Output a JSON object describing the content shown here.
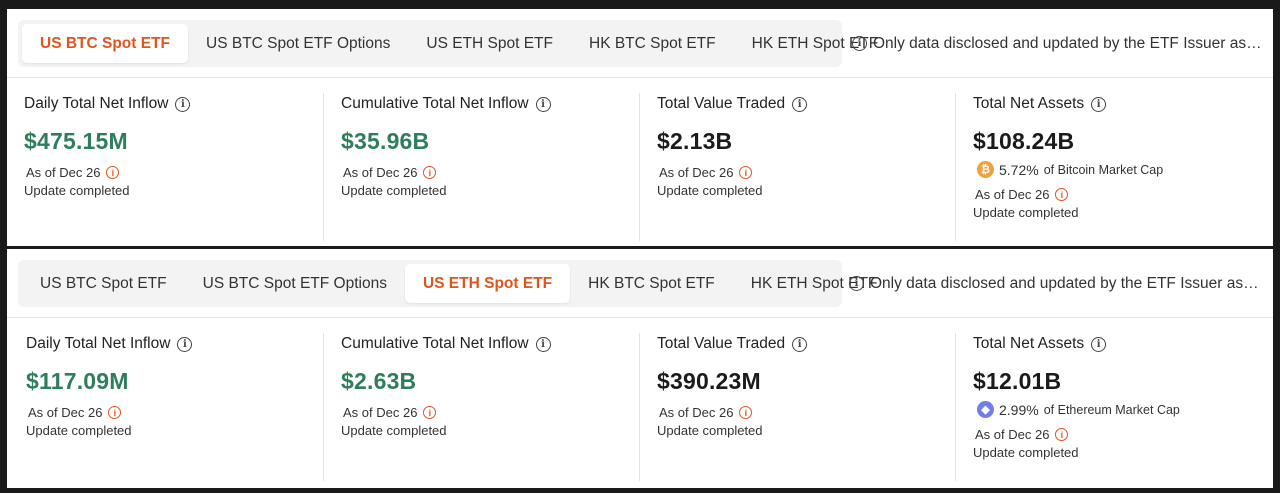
{
  "tabs": [
    "US BTC Spot ETF",
    "US BTC Spot ETF Options",
    "US ETH Spot ETF",
    "HK BTC Spot ETF",
    "HK ETH Spot ETF"
  ],
  "notice": "Only data disclosed and updated by the ETF Issuer as of t...",
  "panel1": {
    "active_tab": "US BTC Spot ETF",
    "tab_labels": [
      "US BTC Spot ETF",
      "US BTC Spot ETF Options",
      "US ETH Spot ETF",
      "HK BTC Spot ETF",
      "HK ETH Spot ETF"
    ],
    "metrics": [
      {
        "label": "Daily Total Net Inflow",
        "value": "$475.15M",
        "as_of": "As of Dec 26",
        "status": "Update completed"
      },
      {
        "label": "Cumulative Total Net Inflow",
        "value": "$35.96B",
        "as_of": "As of Dec 26",
        "status": "Update completed"
      },
      {
        "label": "Total Value Traded",
        "value": "$2.13B",
        "as_of": "As of Dec 26",
        "status": "Update completed"
      },
      {
        "label": "Total Net Assets",
        "value": "$108.24B",
        "share_pct": "5.72%",
        "share_of": "of Bitcoin Market Cap",
        "coin_icon": "bitcoin-icon",
        "as_of": "As of Dec 26",
        "status": "Update completed"
      }
    ]
  },
  "panel2": {
    "active_tab": "US ETH Spot ETF",
    "tab_labels": [
      "US BTC Spot ETF",
      "US BTC Spot ETF Options",
      "US ETH Spot ETF",
      "HK BTC Spot ETF",
      "HK ETH Spot ETF"
    ],
    "metrics": [
      {
        "label": "Daily Total Net Inflow",
        "value": "$117.09M",
        "as_of": "As of Dec 26",
        "status": "Update completed"
      },
      {
        "label": "Cumulative Total Net Inflow",
        "value": "$2.63B",
        "as_of": "As of Dec 26",
        "status": "Update completed"
      },
      {
        "label": "Total Value Traded",
        "value": "$390.23M",
        "as_of": "As of Dec 26",
        "status": "Update completed"
      },
      {
        "label": "Total Net Assets",
        "value": "$12.01B",
        "share_pct": "2.99%",
        "share_of": "of Ethereum Market Cap",
        "coin_icon": "ethereum-icon",
        "as_of": "As of Dec 26",
        "status": "Update completed"
      }
    ]
  },
  "colors": {
    "accent": "#e0541e",
    "positive": "#2e7d5b",
    "btc": "#f2a23a",
    "eth": "#6f7ee8"
  },
  "icons": {
    "info": "i",
    "btc_glyph": "₿",
    "eth_glyph": "◆",
    "warn": "i"
  }
}
